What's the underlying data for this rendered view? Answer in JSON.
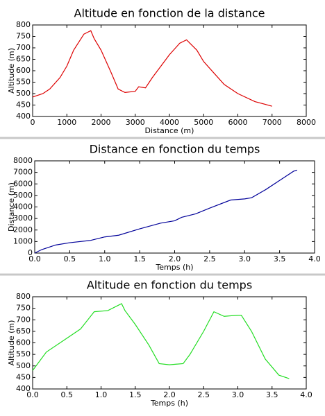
{
  "chart_data": [
    {
      "type": "line",
      "title": "Altitude en fonction de la distance",
      "xlabel": "Distance (m)",
      "ylabel": "Altitude (m)",
      "color": "#dd0000",
      "x": [
        0,
        300,
        500,
        800,
        1000,
        1200,
        1500,
        1700,
        1800,
        2000,
        2300,
        2500,
        2700,
        3000,
        3100,
        3300,
        3500,
        3800,
        4000,
        4300,
        4500,
        4600,
        4800,
        5000,
        5300,
        5600,
        6000,
        6500,
        7000
      ],
      "values": [
        485,
        500,
        520,
        570,
        620,
        690,
        760,
        775,
        740,
        690,
        590,
        520,
        505,
        510,
        530,
        525,
        570,
        630,
        670,
        720,
        735,
        720,
        690,
        640,
        590,
        540,
        500,
        465,
        445
      ],
      "xlim": [
        0,
        8000
      ],
      "xticks": [
        0,
        1000,
        2000,
        3000,
        4000,
        5000,
        6000,
        7000,
        8000
      ],
      "ylim": [
        400,
        800
      ],
      "yticks": [
        400,
        450,
        500,
        550,
        600,
        650,
        700,
        750,
        800
      ]
    },
    {
      "type": "line",
      "title": "Distance en fonction du temps",
      "xlabel": "Temps (h)",
      "ylabel": "Distance (m)",
      "color": "#000099",
      "x": [
        0,
        0.1,
        0.3,
        0.5,
        0.8,
        1.0,
        1.2,
        1.5,
        1.8,
        2.0,
        2.1,
        2.3,
        2.5,
        2.8,
        3.0,
        3.1,
        3.3,
        3.5,
        3.7,
        3.75
      ],
      "values": [
        0,
        300,
        700,
        900,
        1100,
        1400,
        1550,
        2100,
        2600,
        2800,
        3100,
        3400,
        3900,
        4600,
        4700,
        4800,
        5500,
        6300,
        7100,
        7200
      ],
      "xlim": [
        0,
        4
      ],
      "xticks": [
        {
          "value": 0,
          "label": "0.0"
        },
        0.5,
        {
          "value": 1,
          "label": "1.0"
        },
        1.5,
        {
          "value": 2,
          "label": "2.0"
        },
        2.5,
        {
          "value": 3,
          "label": "3.0"
        },
        3.5,
        {
          "value": 4,
          "label": "4.0"
        }
      ],
      "ylim": [
        0,
        8000
      ],
      "yticks": [
        0,
        1000,
        2000,
        3000,
        4000,
        5000,
        6000,
        7000,
        8000
      ]
    },
    {
      "type": "line",
      "title": "Altitude en fonction du temps",
      "xlabel": "Temps (h)",
      "ylabel": "Altitude (m)",
      "color": "#22dd22",
      "x": [
        0,
        0.2,
        0.5,
        0.7,
        0.9,
        1.1,
        1.3,
        1.35,
        1.5,
        1.7,
        1.85,
        2.0,
        2.2,
        2.3,
        2.5,
        2.65,
        2.8,
        3.0,
        3.05,
        3.2,
        3.4,
        3.6,
        3.75
      ],
      "values": [
        480,
        560,
        620,
        660,
        735,
        740,
        770,
        740,
        680,
        590,
        510,
        505,
        510,
        550,
        650,
        735,
        715,
        720,
        720,
        650,
        530,
        460,
        445
      ],
      "xlim": [
        0,
        4
      ],
      "xticks": [
        {
          "value": 0,
          "label": "0.0"
        },
        0.5,
        {
          "value": 1,
          "label": "1.0"
        },
        1.5,
        {
          "value": 2,
          "label": "2.0"
        },
        2.5,
        {
          "value": 3,
          "label": "3.0"
        },
        3.5,
        {
          "value": 4,
          "label": "4.0"
        }
      ],
      "ylim": [
        400,
        800
      ],
      "yticks": [
        400,
        450,
        500,
        550,
        600,
        650,
        700,
        750,
        800
      ]
    }
  ]
}
